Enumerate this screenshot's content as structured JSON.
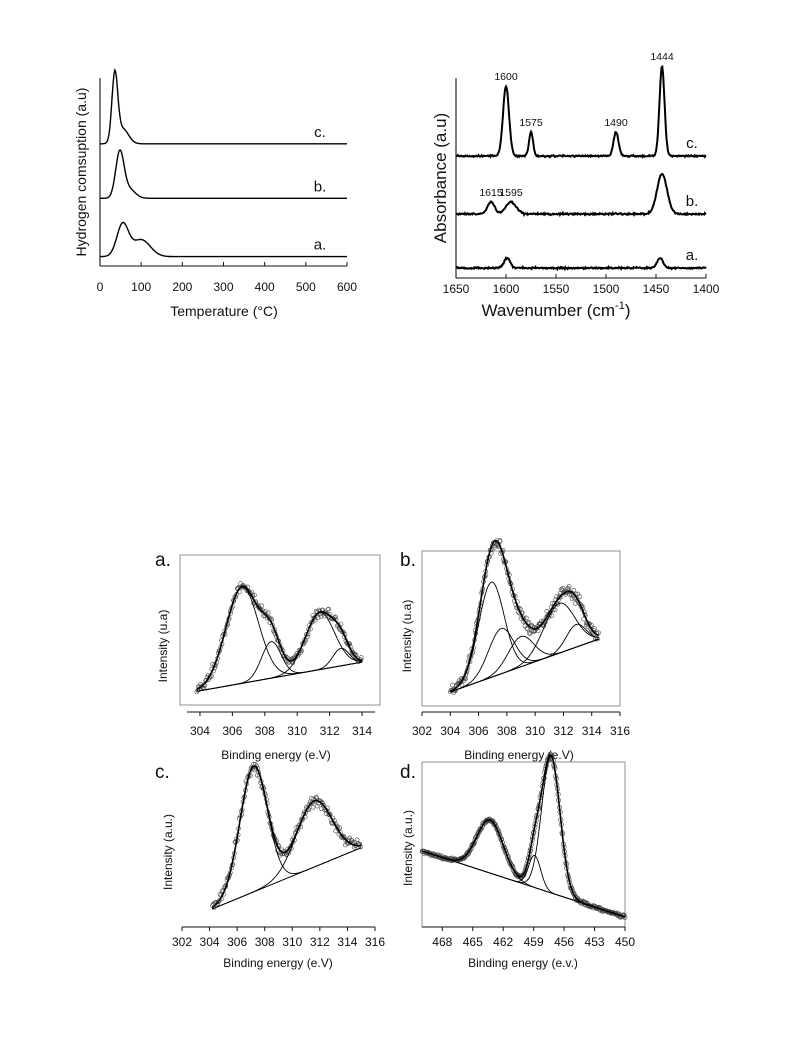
{
  "chart_data": [
    {
      "id": "tpr",
      "type": "line",
      "xlabel": "Temperature (°C)",
      "ylabel": "Hydrogen comsuption (a.u)",
      "xlim": [
        0,
        600
      ],
      "xticks": [
        "0",
        "100",
        "200",
        "300",
        "400",
        "500",
        "600"
      ],
      "series": [
        {
          "name": "c.",
          "label": "c.",
          "baseline": 0.65,
          "peaks": [
            [
              36,
              0.36,
              7
            ],
            [
              55,
              0.08,
              14
            ]
          ]
        },
        {
          "name": "b.",
          "label": "b.",
          "baseline": 0.36,
          "peaks": [
            [
              48,
              0.24,
              10
            ],
            [
              70,
              0.05,
              15
            ]
          ]
        },
        {
          "name": "a.",
          "label": "a.",
          "baseline": 0.05,
          "peaks": [
            [
              55,
              0.17,
              14
            ],
            [
              100,
              0.09,
              22
            ]
          ]
        }
      ]
    },
    {
      "id": "ftir",
      "type": "line",
      "xlabel": "Wavenumber (cm",
      "xlabel_sup": "-1",
      "xlabel_end": ")",
      "ylabel": "Absorbance (a.u)",
      "xlim": [
        1650,
        1400
      ],
      "xticks": [
        "1650",
        "1600",
        "1550",
        "1500",
        "1450",
        "1400"
      ],
      "series": [
        {
          "name": "c.",
          "label": "c.",
          "baseline": 0.61,
          "peaks": [
            [
              1600,
              0.35,
              3
            ],
            [
              1575,
              0.12,
              2
            ],
            [
              1490,
              0.12,
              2.5
            ],
            [
              1444,
              0.45,
              2.5
            ]
          ]
        },
        {
          "name": "b.",
          "label": "b.",
          "baseline": 0.32,
          "peaks": [
            [
              1615,
              0.06,
              3.5
            ],
            [
              1595,
              0.06,
              5
            ],
            [
              1444,
              0.2,
              5
            ]
          ]
        },
        {
          "name": "a.",
          "label": "a.",
          "baseline": 0.05,
          "peaks": [
            [
              1599,
              0.05,
              3
            ],
            [
              1446,
              0.05,
              3
            ]
          ]
        }
      ],
      "annotations": [
        {
          "text": "1600",
          "x": 1600
        },
        {
          "text": "1575",
          "x": 1575
        },
        {
          "text": "1490",
          "x": 1490
        },
        {
          "text": "1444",
          "x": 1444
        },
        {
          "text": "1615",
          "x": 1615
        },
        {
          "text": "1595",
          "x": 1595
        }
      ]
    },
    {
      "id": "xps-a",
      "panel_label": "a.",
      "type": "scatter",
      "xlabel": "Binding energy (e.V)",
      "ylabel": "Intensity (u.a)",
      "xlim": [
        303.2,
        314.8
      ],
      "xticks": [
        "304",
        "306",
        "308",
        "310",
        "312",
        "314"
      ],
      "background": [
        [
          303.8,
          0.08
        ],
        [
          314,
          0.28
        ]
      ],
      "components": [
        [
          306.6,
          0.66,
          1.0
        ],
        [
          308.4,
          0.25,
          0.6
        ],
        [
          311.4,
          0.39,
          0.9
        ],
        [
          312.7,
          0.12,
          0.5
        ]
      ]
    },
    {
      "id": "xps-b",
      "panel_label": "b.",
      "type": "scatter",
      "xlabel": "Binding energy (e.V)",
      "ylabel": "Intensity (u.a)",
      "xlim": [
        302,
        316
      ],
      "xticks": [
        "302",
        "304",
        "306",
        "308",
        "310",
        "312",
        "314",
        "316"
      ],
      "background": [
        [
          304,
          0.08
        ],
        [
          314.5,
          0.43
        ]
      ],
      "components": [
        [
          306.9,
          0.63,
          0.9
        ],
        [
          307.6,
          0.3,
          0.9
        ],
        [
          309.0,
          0.2,
          0.9
        ],
        [
          311.7,
          0.33,
          1.1
        ],
        [
          312.9,
          0.15,
          0.7
        ]
      ]
    },
    {
      "id": "xps-c",
      "panel_label": "c.",
      "type": "scatter",
      "xlabel": "Binding energy (e.V)",
      "ylabel": "Intensity (a.u.)",
      "xlim": [
        302,
        316
      ],
      "xticks": [
        "302",
        "304",
        "306",
        "308",
        "310",
        "312",
        "314",
        "316"
      ],
      "background": [
        [
          304.2,
          0.1
        ],
        [
          315,
          0.48
        ]
      ],
      "components": [
        [
          307.2,
          0.78,
          1.0
        ],
        [
          311.6,
          0.41,
          1.3
        ]
      ]
    },
    {
      "id": "xps-d",
      "panel_label": "d.",
      "type": "scatter",
      "xlabel": "Binding energy (e.v.)",
      "ylabel": "Intensity (a.u.)",
      "xlim": [
        470,
        450
      ],
      "xticks": [
        "468",
        "465",
        "462",
        "459",
        "456",
        "453",
        "450"
      ],
      "background": [
        [
          470,
          0.46
        ],
        [
          450,
          0.05
        ]
      ],
      "components": [
        [
          463.3,
          0.33,
          1.3
        ],
        [
          458.9,
          0.2,
          0.6
        ],
        [
          457.3,
          0.85,
          0.9
        ]
      ]
    }
  ]
}
